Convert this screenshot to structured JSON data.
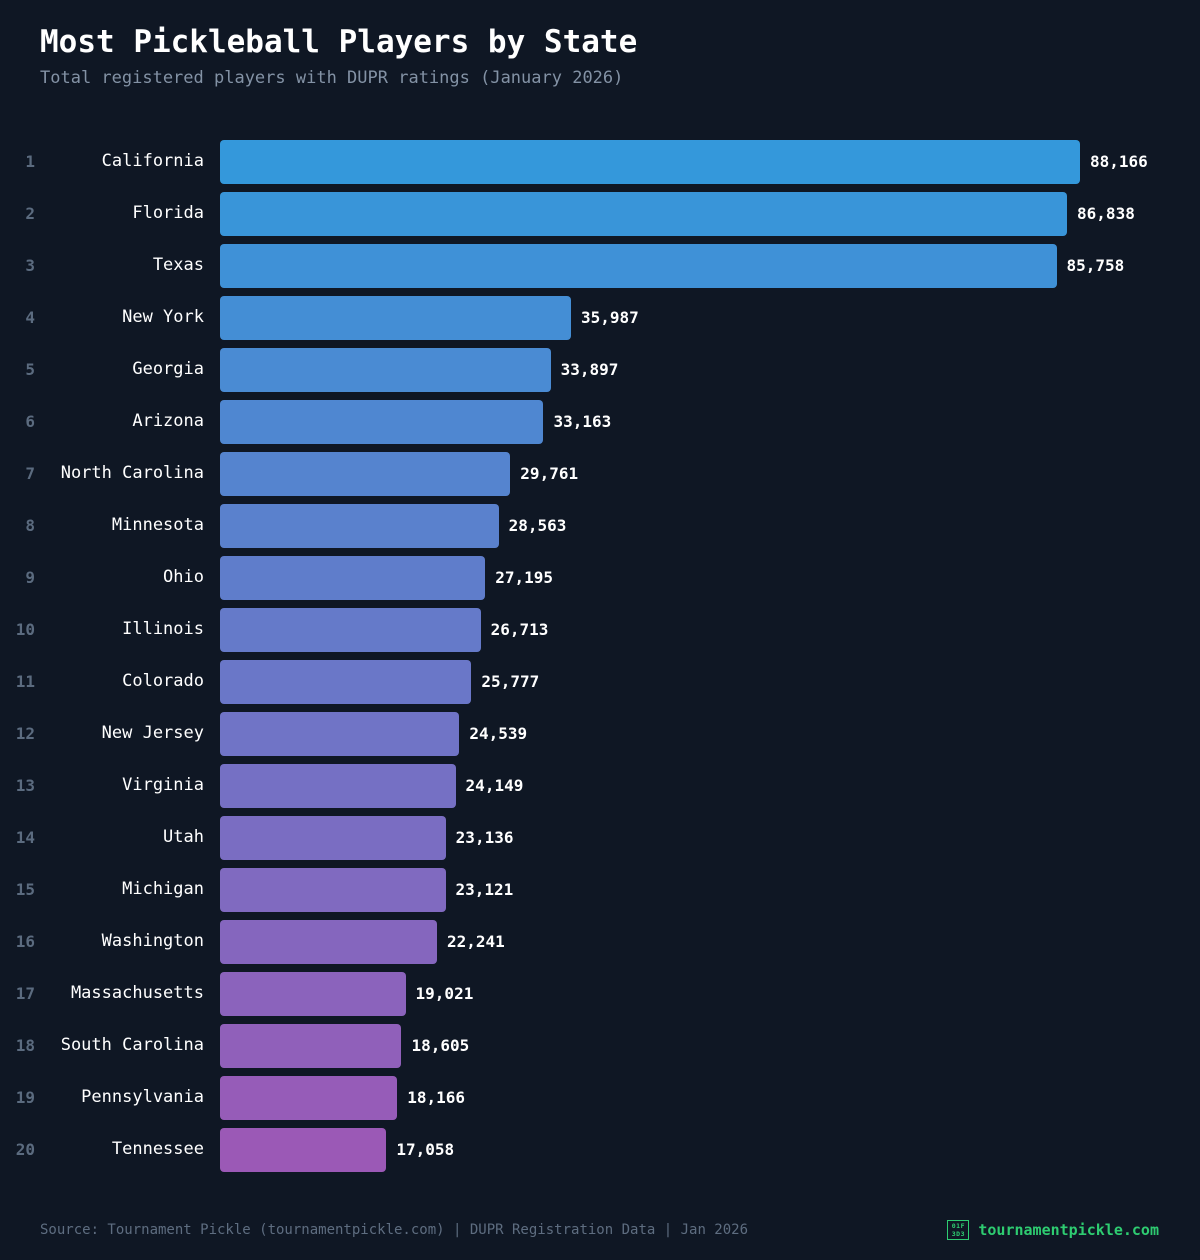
{
  "header": {
    "title": "Most Pickleball Players by State",
    "subtitle": "Total registered players with DUPR ratings (January 2026)"
  },
  "chart_data": {
    "type": "bar",
    "orientation": "horizontal",
    "title": "Most Pickleball Players by State",
    "subtitle": "Total registered players with DUPR ratings (January 2026)",
    "xlim": [
      0,
      88166
    ],
    "grid": false,
    "color_start": "#3498db",
    "color_end": "#9b59b6",
    "ranks": [
      "1",
      "2",
      "3",
      "4",
      "5",
      "6",
      "7",
      "8",
      "9",
      "10",
      "11",
      "12",
      "13",
      "14",
      "15",
      "16",
      "17",
      "18",
      "19",
      "20"
    ],
    "categories": [
      "California",
      "Florida",
      "Texas",
      "New York",
      "Georgia",
      "Arizona",
      "North Carolina",
      "Minnesota",
      "Ohio",
      "Illinois",
      "Colorado",
      "New Jersey",
      "Virginia",
      "Utah",
      "Michigan",
      "Washington",
      "Massachusetts",
      "South Carolina",
      "Pennsylvania",
      "Tennessee"
    ],
    "values": [
      88166,
      86838,
      85758,
      35987,
      33897,
      33163,
      29761,
      28563,
      27195,
      26713,
      25777,
      24539,
      24149,
      23136,
      23121,
      22241,
      19021,
      18605,
      18166,
      17058
    ],
    "value_labels": [
      "88,166",
      "86,838",
      "85,758",
      "35,987",
      "33,897",
      "33,163",
      "29,761",
      "28,563",
      "27,195",
      "26,713",
      "25,777",
      "24,539",
      "24,149",
      "23,136",
      "23,121",
      "22,241",
      "19,021",
      "18,605",
      "18,166",
      "17,058"
    ]
  },
  "footer": {
    "source": "Source: Tournament Pickle (tournamentpickle.com) | DUPR Registration Data | Jan 2026",
    "brand_icon": "pickleball-emoji-missing-glyph",
    "brand_icon_text_top": "01F",
    "brand_icon_text_bottom": "3D3",
    "brand": "tournamentpickle.com",
    "brand_color": "#2ecc71"
  }
}
